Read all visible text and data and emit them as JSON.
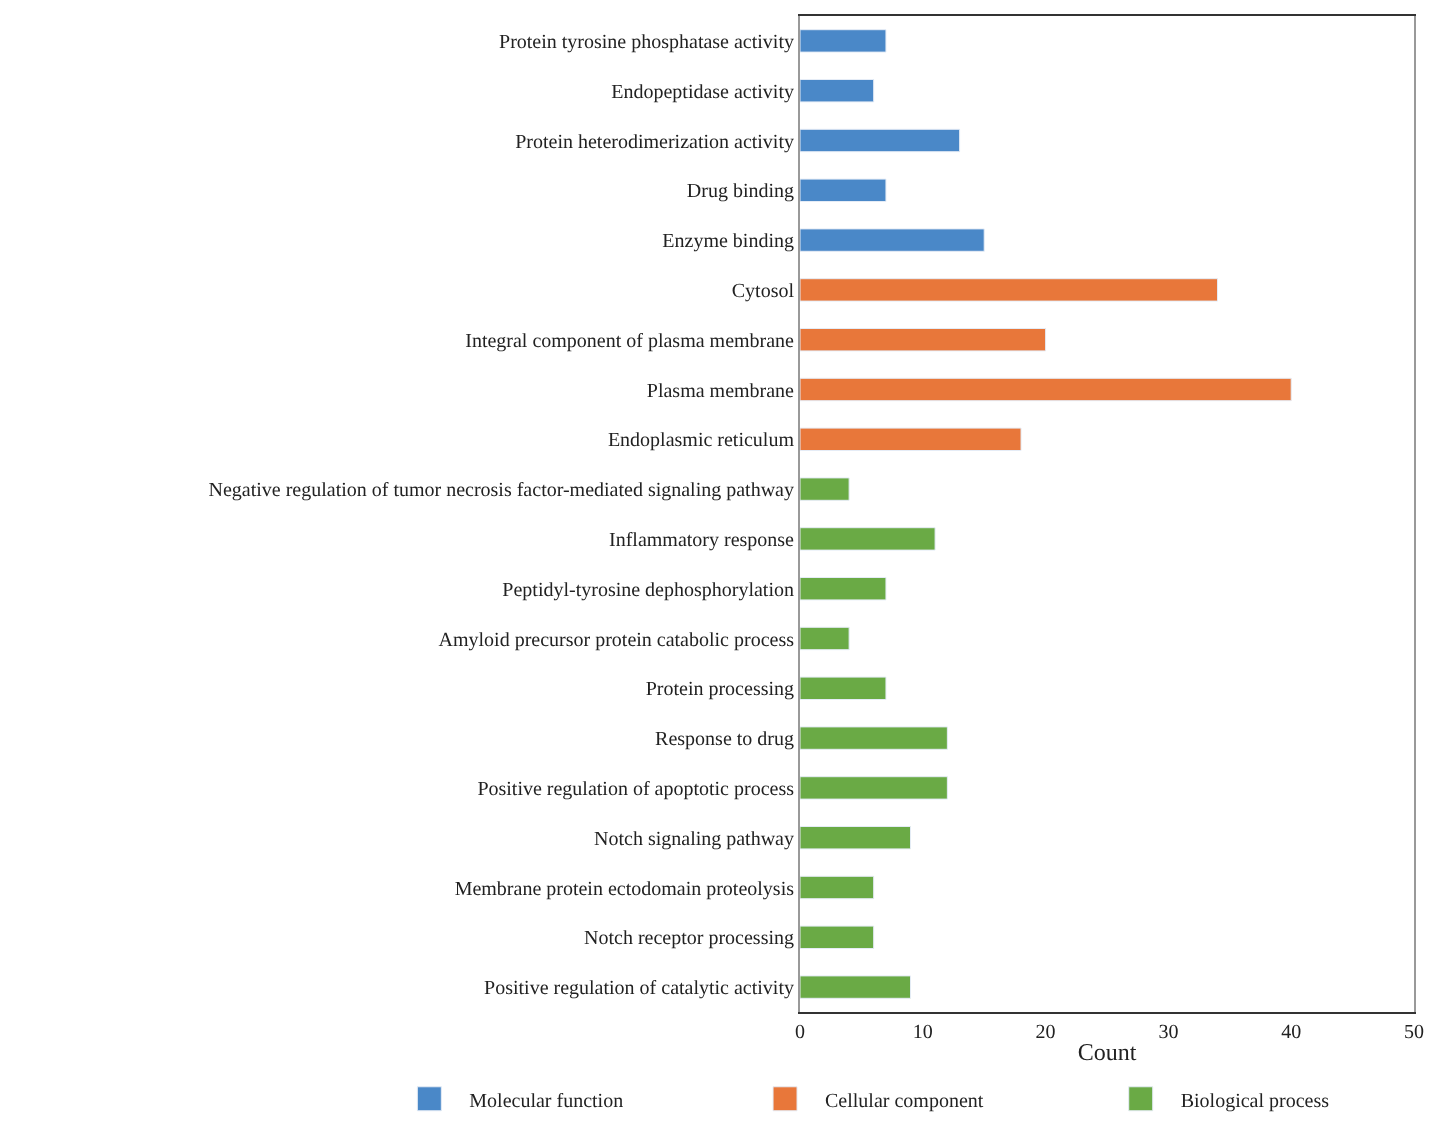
{
  "chart_data": {
    "type": "bar",
    "orientation": "horizontal",
    "xlabel": "Count",
    "categories": [
      "Protein tyrosine phosphatase activity",
      "Endopeptidase activity",
      "Protein heterodimerization activity",
      "Drug binding",
      "Enzyme binding",
      "Cytosol",
      "Integral component of plasma membrane",
      "Plasma membrane",
      "Endoplasmic reticulum",
      "Negative regulation of tumor necrosis factor-mediated signaling pathway",
      "Inflammatory response",
      "Peptidyl-tyrosine dephosphorylation",
      "Amyloid precursor protein catabolic process",
      "Protein processing",
      "Response to drug",
      "Positive regulation of apoptotic process",
      "Notch signaling pathway",
      "Membrane protein ectodomain proteolysis",
      "Notch receptor processing",
      "Positive regulation of catalytic activity"
    ],
    "series": [
      {
        "name": "Molecular function",
        "color": "#4a88c8",
        "values": [
          7,
          6,
          13,
          7,
          15,
          null,
          null,
          null,
          null,
          null,
          null,
          null,
          null,
          null,
          null,
          null,
          null,
          null,
          null,
          null
        ]
      },
      {
        "name": "Cellular component",
        "color": "#e8773a",
        "values": [
          null,
          null,
          null,
          null,
          null,
          34,
          20,
          40,
          18,
          null,
          null,
          null,
          null,
          null,
          null,
          null,
          null,
          null,
          null,
          null
        ]
      },
      {
        "name": "Biological process",
        "color": "#6aaa45",
        "values": [
          null,
          null,
          null,
          null,
          null,
          null,
          null,
          null,
          null,
          4,
          11,
          7,
          4,
          7,
          12,
          12,
          9,
          6,
          6,
          9
        ]
      }
    ],
    "xlim": [
      0,
      50
    ],
    "xticks": [
      0,
      10,
      20,
      30,
      40,
      50
    ],
    "legend": "bottom"
  }
}
